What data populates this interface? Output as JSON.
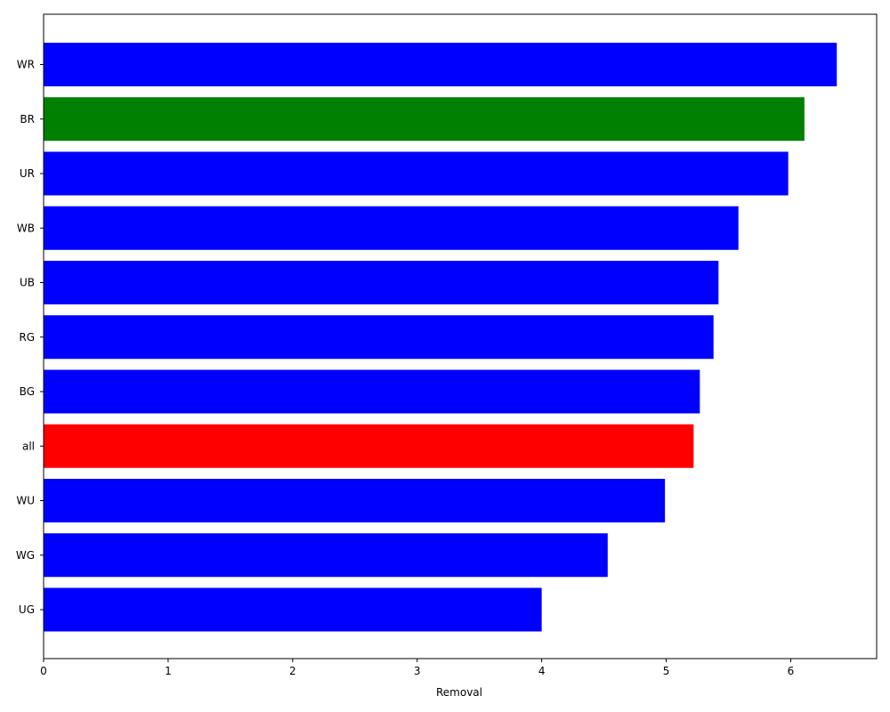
{
  "chart_data": {
    "type": "bar",
    "orientation": "horizontal",
    "title": "",
    "xlabel": "Removal",
    "ylabel": "",
    "xlim": [
      0,
      6.69
    ],
    "xticks": [
      0,
      1,
      2,
      3,
      4,
      5,
      6
    ],
    "grid": false,
    "categories": [
      "WR",
      "BR",
      "UR",
      "WB",
      "UB",
      "RG",
      "BG",
      "all",
      "WU",
      "WG",
      "UG"
    ],
    "values": [
      6.37,
      6.11,
      5.98,
      5.58,
      5.42,
      5.38,
      5.27,
      5.22,
      4.99,
      4.53,
      4.0
    ],
    "colors": [
      "#0000ff",
      "#008000",
      "#0000ff",
      "#0000ff",
      "#0000ff",
      "#0000ff",
      "#0000ff",
      "#ff0000",
      "#0000ff",
      "#0000ff",
      "#0000ff"
    ]
  }
}
